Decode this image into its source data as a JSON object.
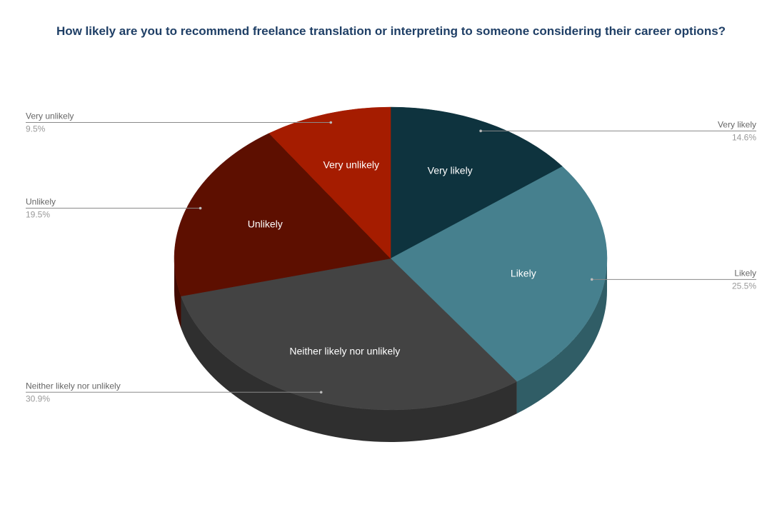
{
  "chart_data": {
    "type": "pie",
    "title": "How likely are you to recommend freelance translation or interpreting to someone considering their career options?",
    "categories": [
      "Very likely",
      "Likely",
      "Neither likely nor unlikely",
      "Unlikely",
      "Very unlikely"
    ],
    "values": [
      14.6,
      25.5,
      30.9,
      19.5,
      9.5
    ],
    "value_labels": [
      "14.6%",
      "25.5%",
      "30.9%",
      "19.5%",
      "9.5%"
    ],
    "colors": [
      "#0e333e",
      "#46808e",
      "#434343",
      "#5d0f00",
      "#a51c00"
    ],
    "side_colors": [
      "#092530",
      "#305d66",
      "#2f2f2f",
      "#420a00",
      "#7a1500"
    ],
    "legend": "none",
    "three_d": true
  }
}
